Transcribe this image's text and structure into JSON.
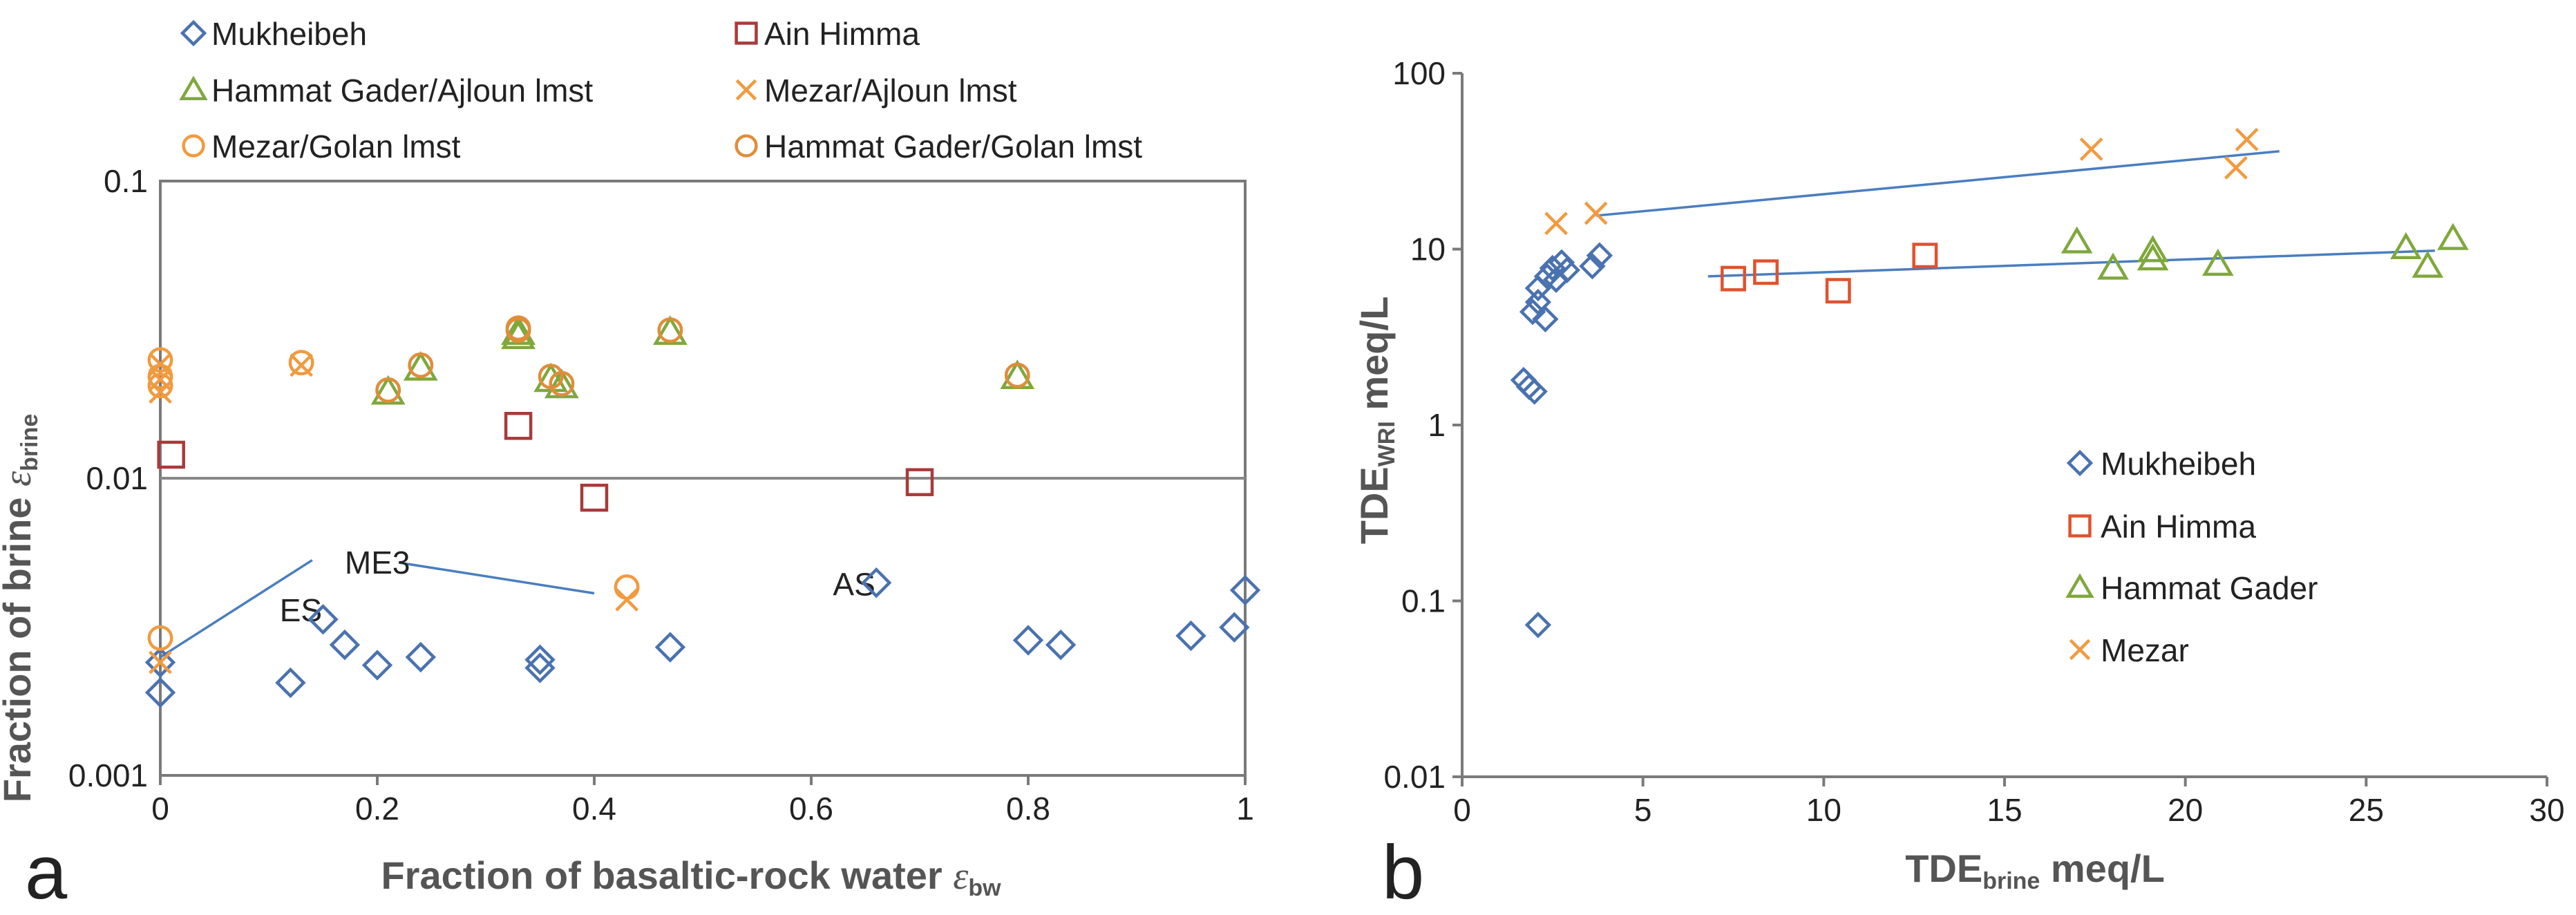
{
  "colors": {
    "mukheibeh": "#4a72b0",
    "ain_himma": "#a93a3a",
    "ain_himma_b": "#e0522e",
    "hammat_gader": "#7fa83c",
    "mezar": "#f29a3f",
    "golan": "#e08d3a",
    "fit_line": "#4a7ebf",
    "axis": "#7a7a7a"
  },
  "panel_a": {
    "letter": "a",
    "ylabel_main": "Fraction of brine ",
    "ylabel_sym": "ε",
    "ylabel_sub": "brine",
    "xlabel_main": "Fraction of basaltic-rock water ",
    "xlabel_sym": "ε",
    "xlabel_sub": "bw",
    "legend": [
      {
        "label": "Mukheibeh",
        "marker": "diamond",
        "color": "mukheibeh"
      },
      {
        "label": "Ain Himma",
        "marker": "square",
        "color": "ain_himma"
      },
      {
        "label": "Hammat Gader/Ajloun lmst",
        "marker": "triangle",
        "color": "hammat_gader"
      },
      {
        "label": "Mezar/Ajloun lmst",
        "marker": "x",
        "color": "mezar"
      },
      {
        "label": "Mezar/Golan lmst",
        "marker": "circle",
        "color": "mezar"
      },
      {
        "label": "Hammat Gader/Golan lmst",
        "marker": "circle",
        "color": "golan"
      }
    ],
    "annotations": {
      "me3": "ME3",
      "es": "ES",
      "as": "AS"
    }
  },
  "panel_b": {
    "letter": "b",
    "ylabel_main": "TDE",
    "ylabel_sub": "WRI",
    "ylabel_unit": " meq/L",
    "xlabel_main": "TDE",
    "xlabel_sub": "brine",
    "xlabel_unit": "  meq/L",
    "legend": [
      {
        "label": "Mukheibeh",
        "marker": "diamond",
        "color": "mukheibeh"
      },
      {
        "label": "Ain Himma",
        "marker": "square",
        "color": "ain_himma_b"
      },
      {
        "label": "Hammat Gader",
        "marker": "triangle",
        "color": "hammat_gader"
      },
      {
        "label": "Mezar",
        "marker": "x",
        "color": "mezar"
      }
    ]
  },
  "chart_data": [
    {
      "type": "scatter",
      "title": "",
      "xlabel": "Fraction of basaltic-rock water ε_bw",
      "ylabel": "Fraction of brine ε_brine",
      "xlim": [
        0,
        1
      ],
      "ylim": [
        0.001,
        0.1
      ],
      "yscale": "log",
      "xticks": [
        "0",
        "0.2",
        "0.4",
        "0.6",
        "0.8",
        "1"
      ],
      "yticks": [
        "0.001",
        "0.01",
        "0.1"
      ],
      "grid": "horizontal at 0.01",
      "legend_position": "top",
      "series": [
        {
          "name": "Mukheibeh",
          "marker": "diamond",
          "points": [
            [
              0,
              0.0019
            ],
            [
              0,
              0.0024
            ],
            [
              0.12,
              0.00205
            ],
            [
              0.15,
              0.00335
            ],
            [
              0.17,
              0.00275
            ],
            [
              0.2,
              0.00235
            ],
            [
              0.24,
              0.0025
            ],
            [
              0.35,
              0.00245
            ],
            [
              0.35,
              0.0023
            ],
            [
              0.47,
              0.0027
            ],
            [
              0.66,
              0.00445
            ],
            [
              0.8,
              0.00285
            ],
            [
              0.83,
              0.00275
            ],
            [
              0.95,
              0.00295
            ],
            [
              0.99,
              0.00315
            ],
            [
              1.0,
              0.0042
            ]
          ]
        },
        {
          "name": "Ain Himma",
          "marker": "square",
          "points": [
            [
              0.01,
              0.012
            ],
            [
              0.33,
              0.015
            ],
            [
              0.4,
              0.0086
            ],
            [
              0.7,
              0.0097
            ]
          ]
        },
        {
          "name": "Hammat Gader/Ajloun lmst",
          "marker": "triangle",
          "points": [
            [
              0.21,
              0.0195
            ],
            [
              0.24,
              0.0235
            ],
            [
              0.33,
              0.03
            ],
            [
              0.33,
              0.031
            ],
            [
              0.36,
              0.0215
            ],
            [
              0.37,
              0.0205
            ],
            [
              0.47,
              0.031
            ],
            [
              0.79,
              0.022
            ]
          ]
        },
        {
          "name": "Mezar/Ajloun lmst",
          "marker": "x",
          "points": [
            [
              0,
              0.0242
            ],
            [
              0,
              0.0215
            ],
            [
              0,
              0.0195
            ],
            [
              0.13,
              0.024
            ],
            [
              0,
              0.0024
            ],
            [
              0.43,
              0.0039
            ]
          ]
        },
        {
          "name": "Mezar/Golan lmst",
          "marker": "circle",
          "points": [
            [
              0,
              0.025
            ],
            [
              0,
              0.022
            ],
            [
              0,
              0.0205
            ],
            [
              0.13,
              0.0245
            ],
            [
              0,
              0.0029
            ],
            [
              0.43,
              0.0043
            ]
          ]
        },
        {
          "name": "Hammat Gader/Golan lmst",
          "marker": "circle",
          "points": [
            [
              0.21,
              0.0198
            ],
            [
              0.24,
              0.024
            ],
            [
              0.33,
              0.032
            ],
            [
              0.33,
              0.0315
            ],
            [
              0.36,
              0.022
            ],
            [
              0.37,
              0.0208
            ],
            [
              0.47,
              0.0315
            ],
            [
              0.79,
              0.0222
            ]
          ]
        }
      ],
      "annotations": [
        {
          "text": "ME3",
          "x": 0.17,
          "y": 0.0052
        },
        {
          "text": "ES",
          "x": 0.11,
          "y": 0.0036
        },
        {
          "text": "AS",
          "x": 0.62,
          "y": 0.0044
        }
      ],
      "annotation_lines": [
        [
          [
            0.0,
            0.0025
          ],
          [
            0.14,
            0.0053
          ]
        ],
        [
          [
            0.22,
            0.0052
          ],
          [
            0.4,
            0.0041
          ]
        ]
      ]
    },
    {
      "type": "scatter",
      "title": "",
      "xlabel": "TDE_brine meq/L",
      "ylabel": "TDE_WRI meq/L",
      "xlim": [
        0,
        30
      ],
      "ylim": [
        0.01,
        100
      ],
      "yscale": "log",
      "xticks": [
        "0",
        "5",
        "10",
        "15",
        "20",
        "25",
        "30"
      ],
      "yticks": [
        "0.01",
        "0.1",
        "1",
        "10",
        "100"
      ],
      "grid": "none",
      "legend_position": "center-left",
      "series": [
        {
          "name": "Mukheibeh",
          "marker": "diamond",
          "points": [
            [
              1.7,
              1.8
            ],
            [
              1.85,
              1.65
            ],
            [
              2.0,
              1.55
            ],
            [
              1.95,
              4.4
            ],
            [
              2.1,
              5.0
            ],
            [
              2.1,
              6.0
            ],
            [
              2.3,
              4.0
            ],
            [
              2.35,
              7.0
            ],
            [
              2.5,
              7.8
            ],
            [
              2.6,
              6.7
            ],
            [
              2.75,
              8.4
            ],
            [
              2.9,
              7.6
            ],
            [
              3.6,
              8.0
            ],
            [
              3.8,
              9.2
            ],
            [
              2.1,
              0.073
            ]
          ]
        },
        {
          "name": "Ain Himma",
          "marker": "square",
          "points": [
            [
              7.5,
              6.8
            ],
            [
              8.4,
              7.4
            ],
            [
              10.4,
              5.8
            ],
            [
              12.8,
              9.2
            ]
          ]
        },
        {
          "name": "Hammat Gader",
          "marker": "triangle",
          "points": [
            [
              17.0,
              11.0
            ],
            [
              18.0,
              7.8
            ],
            [
              19.1,
              8.8
            ],
            [
              19.1,
              9.8
            ],
            [
              20.9,
              8.2
            ],
            [
              26.1,
              10.2
            ],
            [
              26.7,
              8.0
            ],
            [
              27.4,
              11.5
            ]
          ]
        },
        {
          "name": "Mezar",
          "marker": "x",
          "points": [
            [
              2.6,
              14.0
            ],
            [
              3.7,
              16.0
            ],
            [
              17.4,
              37.0
            ],
            [
              21.4,
              29.0
            ],
            [
              21.7,
              42.0
            ]
          ]
        }
      ],
      "fit_lines": [
        [
          [
            3.7,
            15.5
          ],
          [
            22.6,
            36.0
          ]
        ],
        [
          [
            6.8,
            7.0
          ],
          [
            26.9,
            9.8
          ]
        ]
      ]
    }
  ]
}
